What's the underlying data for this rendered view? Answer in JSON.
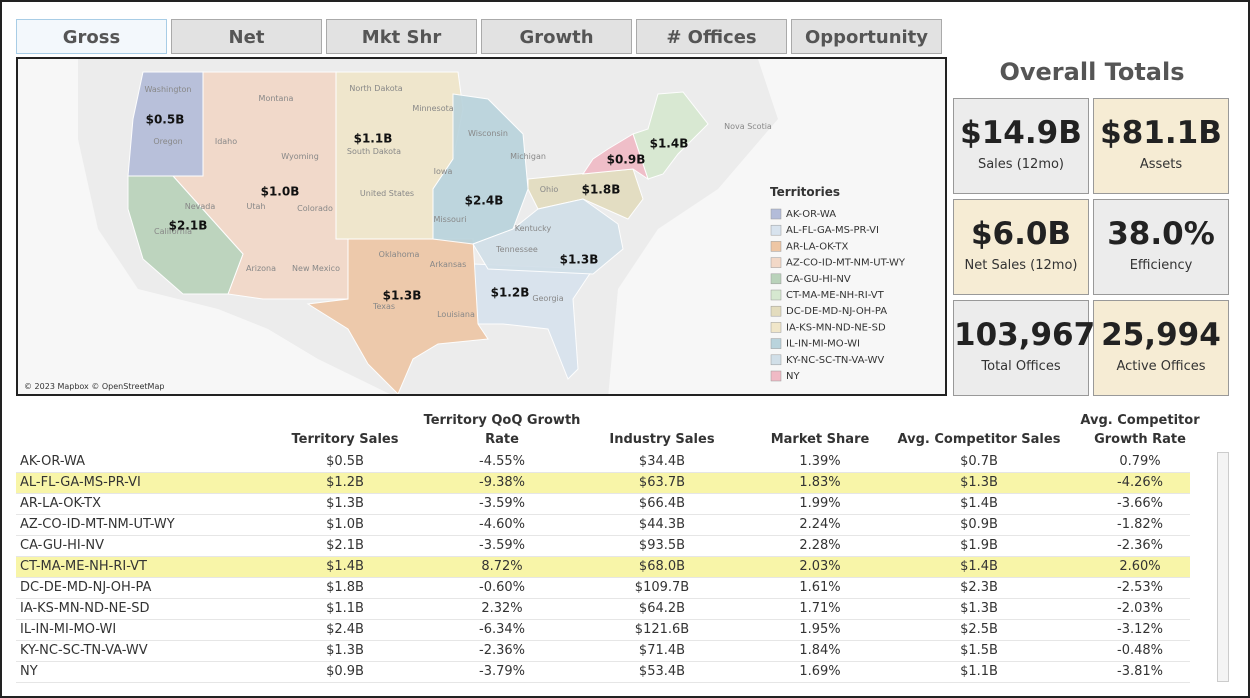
{
  "tabs": [
    "Gross",
    "Net",
    "Mkt Shr",
    "Growth",
    "# Offices",
    "Opportunity"
  ],
  "map": {
    "attribution": "© 2023 Mapbox © OpenStreetMap",
    "basemap_labels": [
      "Washington",
      "Oregon",
      "Montana",
      "Idaho",
      "Wyoming",
      "Nevada",
      "Utah",
      "Colorado",
      "California",
      "Arizona",
      "New Mexico",
      "North Dakota",
      "Minnesota",
      "South Dakota",
      "Iowa",
      "United States",
      "Wisconsin",
      "Michigan",
      "Missouri",
      "Oklahoma",
      "Arkansas",
      "Texas",
      "Louisiana",
      "Ohio",
      "Kentucky",
      "Tennessee",
      "Georgia",
      "Nova Scotia"
    ],
    "region_labels": [
      "$0.5B",
      "$1.2B",
      "$1.3B",
      "$1.0B",
      "$2.1B",
      "$1.4B",
      "$1.8B",
      "$1.1B",
      "$2.4B",
      "$1.3B",
      "$0.9B"
    ],
    "legend": {
      "title": "Territories",
      "items": [
        {
          "name": "AK-OR-WA",
          "color": "#b3bcd9"
        },
        {
          "name": "AL-FL-GA-MS-PR-VI",
          "color": "#d8e3ee"
        },
        {
          "name": "AR-LA-OK-TX",
          "color": "#eec6a4"
        },
        {
          "name": "AZ-CO-ID-MT-NM-UT-WY",
          "color": "#f2d8c7"
        },
        {
          "name": "CA-GU-HI-NV",
          "color": "#b9d2ba"
        },
        {
          "name": "CT-MA-ME-NH-RI-VT",
          "color": "#d6e8d0"
        },
        {
          "name": "DC-DE-MD-NJ-OH-PA",
          "color": "#e3dcbe"
        },
        {
          "name": "IA-KS-MN-ND-NE-SD",
          "color": "#f0e6c9"
        },
        {
          "name": "IL-IN-MI-MO-WI",
          "color": "#b9d3dc"
        },
        {
          "name": "KY-NC-SC-TN-VA-WV",
          "color": "#d1dfe8"
        },
        {
          "name": "NY",
          "color": "#f0bac5"
        }
      ]
    }
  },
  "totals": {
    "title": "Overall Totals",
    "cards": [
      {
        "value": "$14.9B",
        "label": "Sales (12mo)",
        "color": "#ececec"
      },
      {
        "value": "$81.1B",
        "label": "Assets",
        "color": "#f6ecd4"
      },
      {
        "value": "$6.0B",
        "label": "Net Sales (12mo)",
        "color": "#f6ecd4"
      },
      {
        "value": "38.0%",
        "label": "Efficiency",
        "color": "#ececec"
      },
      {
        "value": "103,967",
        "label": "Total Offices",
        "color": "#ececec"
      },
      {
        "value": "25,994",
        "label": "Active Offices",
        "color": "#f6ecd4"
      }
    ]
  },
  "table": {
    "columns": [
      "",
      "Territory Sales",
      "Territory QoQ Growth Rate",
      "Industry Sales",
      "Market Share",
      "Avg. Competitor Sales",
      "Avg. Competitor Growth Rate"
    ],
    "highlight_color": "#f8f5a8",
    "highlighted_rows": [
      1,
      5
    ],
    "rows": [
      [
        "AK-OR-WA",
        "$0.5B",
        "-4.55%",
        "$34.4B",
        "1.39%",
        "$0.7B",
        "0.79%"
      ],
      [
        "AL-FL-GA-MS-PR-VI",
        "$1.2B",
        "-9.38%",
        "$63.7B",
        "1.83%",
        "$1.3B",
        "-4.26%"
      ],
      [
        "AR-LA-OK-TX",
        "$1.3B",
        "-3.59%",
        "$66.4B",
        "1.99%",
        "$1.4B",
        "-3.66%"
      ],
      [
        "AZ-CO-ID-MT-NM-UT-WY",
        "$1.0B",
        "-4.60%",
        "$44.3B",
        "2.24%",
        "$0.9B",
        "-1.82%"
      ],
      [
        "CA-GU-HI-NV",
        "$2.1B",
        "-3.59%",
        "$93.5B",
        "2.28%",
        "$1.9B",
        "-2.36%"
      ],
      [
        "CT-MA-ME-NH-RI-VT",
        "$1.4B",
        "8.72%",
        "$68.0B",
        "2.03%",
        "$1.4B",
        "2.60%"
      ],
      [
        "DC-DE-MD-NJ-OH-PA",
        "$1.8B",
        "-0.60%",
        "$109.7B",
        "1.61%",
        "$2.3B",
        "-2.53%"
      ],
      [
        "IA-KS-MN-ND-NE-SD",
        "$1.1B",
        "2.32%",
        "$64.2B",
        "1.71%",
        "$1.3B",
        "-2.03%"
      ],
      [
        "IL-IN-MI-MO-WI",
        "$2.4B",
        "-6.34%",
        "$121.6B",
        "1.95%",
        "$2.5B",
        "-3.12%"
      ],
      [
        "KY-NC-SC-TN-VA-WV",
        "$1.3B",
        "-2.36%",
        "$71.4B",
        "1.84%",
        "$1.5B",
        "-0.48%"
      ],
      [
        "NY",
        "$0.9B",
        "-3.79%",
        "$53.4B",
        "1.69%",
        "$1.1B",
        "-3.81%"
      ]
    ]
  }
}
